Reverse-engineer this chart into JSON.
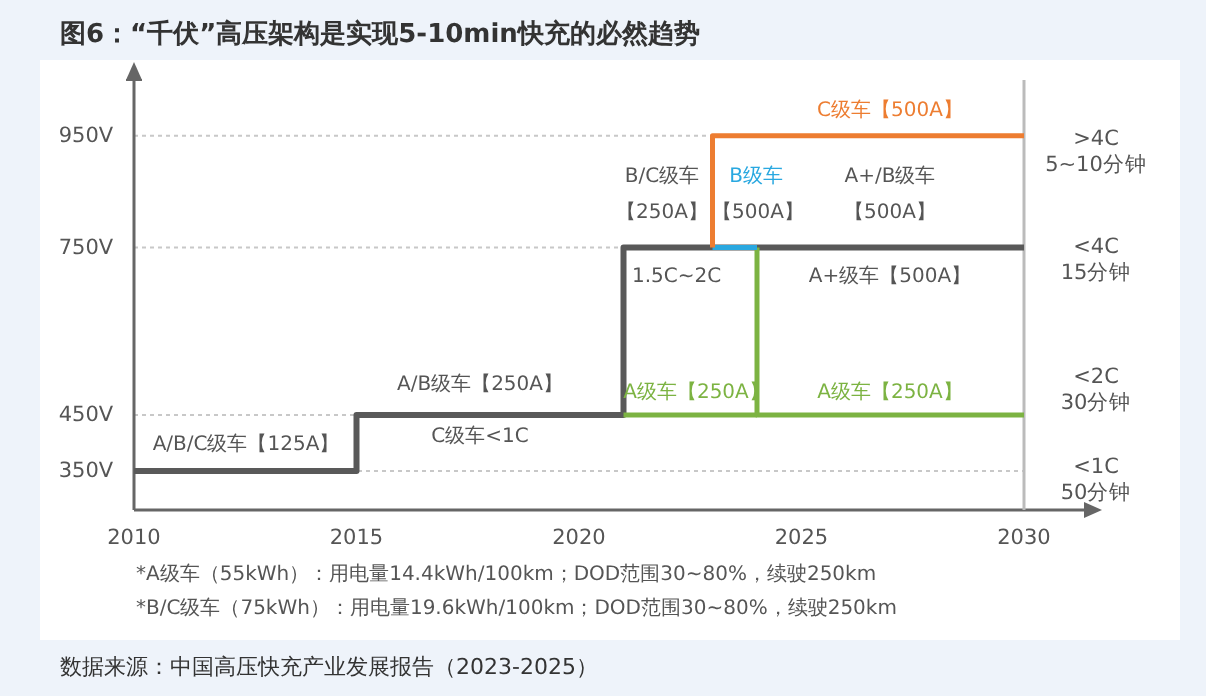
{
  "chart_data": {
    "type": "line",
    "title": "图6：“千伏”高压架构是实现5-10min快充的必然趋势",
    "xlim": [
      2010,
      2030
    ],
    "xticks": [
      2010,
      2015,
      2020,
      2025,
      2030
    ],
    "ylim": [
      280,
      1050
    ],
    "yticks": [
      {
        "value": 350,
        "label": "350V"
      },
      {
        "value": 450,
        "label": "450V"
      },
      {
        "value": 750,
        "label": "750V"
      },
      {
        "value": 950,
        "label": "950V"
      }
    ],
    "y2_categories": [
      ">4C\n5~10分钟",
      "<4C\n15分钟",
      "<2C\n30分钟",
      "<1C\n50分钟"
    ],
    "grid": "y",
    "line_style": "solid",
    "series": [
      {
        "color": "#595959",
        "x": [
          2010,
          2015,
          2015,
          2021,
          2021,
          2030
        ],
        "values": [
          350,
          350,
          450,
          450,
          750,
          750
        ]
      },
      {
        "name": "A级车【250A】",
        "color": "#7cb342",
        "x": [
          2021,
          2024
        ],
        "values": [
          450,
          450
        ]
      },
      {
        "name": "A级车【250A】",
        "color": "#7cb342",
        "x": [
          2024,
          2024,
          2030
        ],
        "values": [
          750,
          450,
          450
        ]
      },
      {
        "name": "B级车",
        "color": "#29a8e0",
        "x": [
          2023,
          2024
        ],
        "values": [
          750,
          750
        ]
      },
      {
        "name": "C级车【500A】",
        "color": "#ed7d31",
        "x": [
          2023,
          2023,
          2030
        ],
        "values": [
          750,
          950,
          950
        ]
      }
    ],
    "annotations": [
      "A/B/C级车【125A】",
      "A/B级车【250A】",
      "C级车<1C",
      "1.5C~2C",
      "B/C级车",
      "【250A】",
      "【500A】",
      "A+/B级车",
      "【500A】",
      "A+级车【500A】",
      "*A级车（55kWh）：用电量14.4kWh/100km；DOD范围30~80%，续驶250km",
      "*B/C级车（75kWh）：用电量19.6kWh/100km；DOD范围30~80%，续驶250km",
      "数据来源：中国高压快充产业发展报告（2023-2025）"
    ]
  }
}
